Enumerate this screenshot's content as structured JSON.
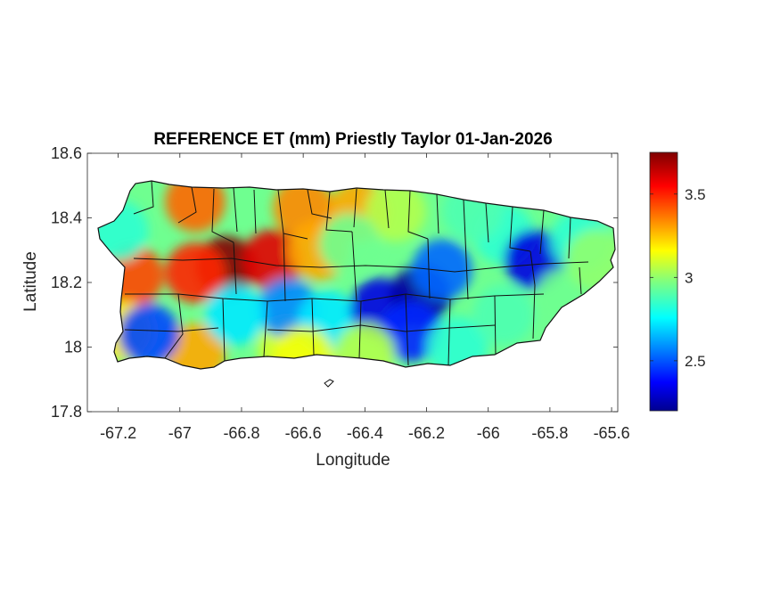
{
  "chart_data": {
    "type": "heatmap",
    "title": "REFERENCE ET (mm) Priestly Taylor 01-Jan-2026",
    "xlabel": "Longitude",
    "ylabel": "Latitude",
    "xlim": [
      -67.3,
      -65.58
    ],
    "ylim": [
      17.8,
      18.6
    ],
    "x_ticks": [
      -67.2,
      -67,
      -66.8,
      -66.6,
      -66.4,
      -66.2,
      -66,
      -65.8,
      -65.6
    ],
    "x_tick_labels": [
      "-67.2",
      "-67",
      "-66.8",
      "-66.6",
      "-66.4",
      "-66.2",
      "-66",
      "-65.8",
      "-65.6"
    ],
    "y_ticks": [
      17.8,
      18,
      18.2,
      18.4,
      18.6
    ],
    "y_tick_labels": [
      "17.8",
      "18",
      "18.2",
      "18.4",
      "18.6"
    ],
    "colorbar": {
      "colormap": "jet",
      "range": [
        2.2,
        3.75
      ],
      "ticks": [
        2.5,
        3,
        3.5
      ],
      "tick_labels": [
        "2.5",
        "3",
        "3.5"
      ]
    },
    "grid": false,
    "value_field": [
      {
        "lon": -66.85,
        "lat": 18.25,
        "value": 3.75
      },
      {
        "lon": -66.7,
        "lat": 18.27,
        "value": 3.6
      },
      {
        "lon": -66.95,
        "lat": 18.23,
        "value": 3.5
      },
      {
        "lon": -67.15,
        "lat": 18.22,
        "value": 3.45
      },
      {
        "lon": -66.95,
        "lat": 18.45,
        "value": 3.4
      },
      {
        "lon": -66.6,
        "lat": 18.43,
        "value": 3.35
      },
      {
        "lon": -66.42,
        "lat": 18.42,
        "value": 3.3
      },
      {
        "lon": -66.55,
        "lat": 18.3,
        "value": 3.3
      },
      {
        "lon": -66.95,
        "lat": 17.98,
        "value": 3.3
      },
      {
        "lon": -67.18,
        "lat": 18.05,
        "value": 3.2
      },
      {
        "lon": -66.65,
        "lat": 18.0,
        "value": 3.1
      },
      {
        "lon": -67.2,
        "lat": 18.36,
        "value": 2.85
      },
      {
        "lon": -66.3,
        "lat": 18.42,
        "value": 3.05
      },
      {
        "lon": -66.45,
        "lat": 18.32,
        "value": 2.95
      },
      {
        "lon": -66.65,
        "lat": 18.12,
        "value": 2.6
      },
      {
        "lon": -66.82,
        "lat": 18.1,
        "value": 2.75
      },
      {
        "lon": -66.52,
        "lat": 18.08,
        "value": 2.75
      },
      {
        "lon": -67.1,
        "lat": 18.04,
        "value": 2.5
      },
      {
        "lon": -66.35,
        "lat": 18.12,
        "value": 2.35
      },
      {
        "lon": -66.22,
        "lat": 18.16,
        "value": 2.25
      },
      {
        "lon": -66.15,
        "lat": 18.24,
        "value": 2.55
      },
      {
        "lon": -66.25,
        "lat": 18.05,
        "value": 2.45
      },
      {
        "lon": -66.1,
        "lat": 18.0,
        "value": 2.85
      },
      {
        "lon": -66.4,
        "lat": 17.98,
        "value": 3.05
      },
      {
        "lon": -65.95,
        "lat": 18.35,
        "value": 2.85
      },
      {
        "lon": -65.85,
        "lat": 18.27,
        "value": 2.35
      },
      {
        "lon": -65.95,
        "lat": 18.1,
        "value": 2.9
      },
      {
        "lon": -65.75,
        "lat": 18.15,
        "value": 2.95
      },
      {
        "lon": -65.7,
        "lat": 18.33,
        "value": 2.85
      },
      {
        "lon": -65.65,
        "lat": 18.27,
        "value": 3.0
      },
      {
        "lon": -66.05,
        "lat": 18.42,
        "value": 2.9
      },
      {
        "lon": -66.6,
        "lat": 17.97,
        "value": 3.15
      }
    ]
  }
}
